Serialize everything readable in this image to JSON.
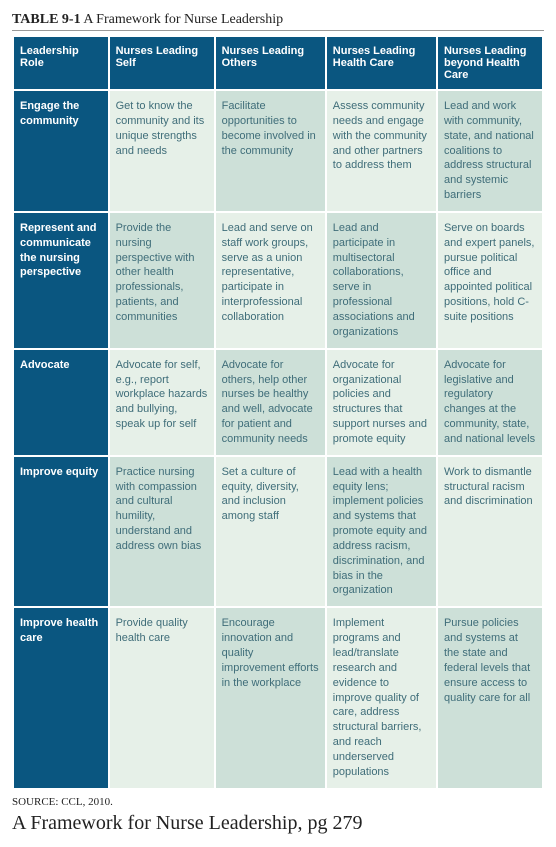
{
  "title_bold": "TABLE 9-1",
  "title_rest": " A Framework for Nurse Leadership",
  "source": "SOURCE: CCL, 2010.",
  "caption": "A Framework for Nurse Leadership, pg 279",
  "colors": {
    "header_bg": "#0a5680",
    "header_fg": "#ffffff",
    "cell_light_bg": "#e6f0e8",
    "cell_dark_bg": "#cde0d8",
    "cell_fg": "#3f6d79"
  },
  "columns": [
    "Leadership Role",
    "Nurses Leading Self",
    "Nurses Leading Others",
    "Nurses Leading Health Care",
    "Nurses Leading beyond Health Care"
  ],
  "rows": [
    {
      "label": "Engage the community",
      "cells": [
        "Get to know the community and its unique strengths and needs",
        "Facilitate opportunities to become involved in the community",
        "Assess community needs and engage with the community and other partners to address them",
        "Lead and work with community, state, and national coalitions to address structural and systemic barriers"
      ]
    },
    {
      "label": "Represent and communicate the nursing perspective",
      "cells": [
        "Provide the nursing perspective with other health professionals, patients, and communities",
        "Lead and serve on staff work groups, serve as a union representative, participate in interprofessional collaboration",
        "Lead and participate in multisectoral collaborations, serve in professional associations and organizations",
        "Serve on boards and expert panels, pursue political office and appointed political positions, hold C-suite positions"
      ]
    },
    {
      "label": "Advocate",
      "cells": [
        "Advocate for self, e.g., report workplace hazards and bullying, speak up for self",
        "Advocate for others, help other nurses be healthy and well, advocate for patient and community needs",
        "Advocate for organizational policies and structures that support nurses and promote equity",
        "Advocate for legislative and regulatory changes at the community, state, and national levels"
      ]
    },
    {
      "label": "Improve equity",
      "cells": [
        "Practice nursing with compassion and cultural humility, understand and address own bias",
        "Set a culture of equity, diversity, and inclusion among staff",
        "Lead with a health equity lens; implement policies and systems that promote equity and address racism, discrimination, and bias in the organization",
        "Work to dismantle structural racism and discrimination"
      ]
    },
    {
      "label": "Improve health care",
      "cells": [
        "Provide quality health care",
        "Encourage innovation and quality improvement efforts in the workplace",
        "Implement programs and lead/translate research and evidence to improve quality of care, address structural barriers, and reach underserved populations",
        "Pursue policies and systems at the state and federal levels that ensure access to quality care for all"
      ]
    }
  ]
}
